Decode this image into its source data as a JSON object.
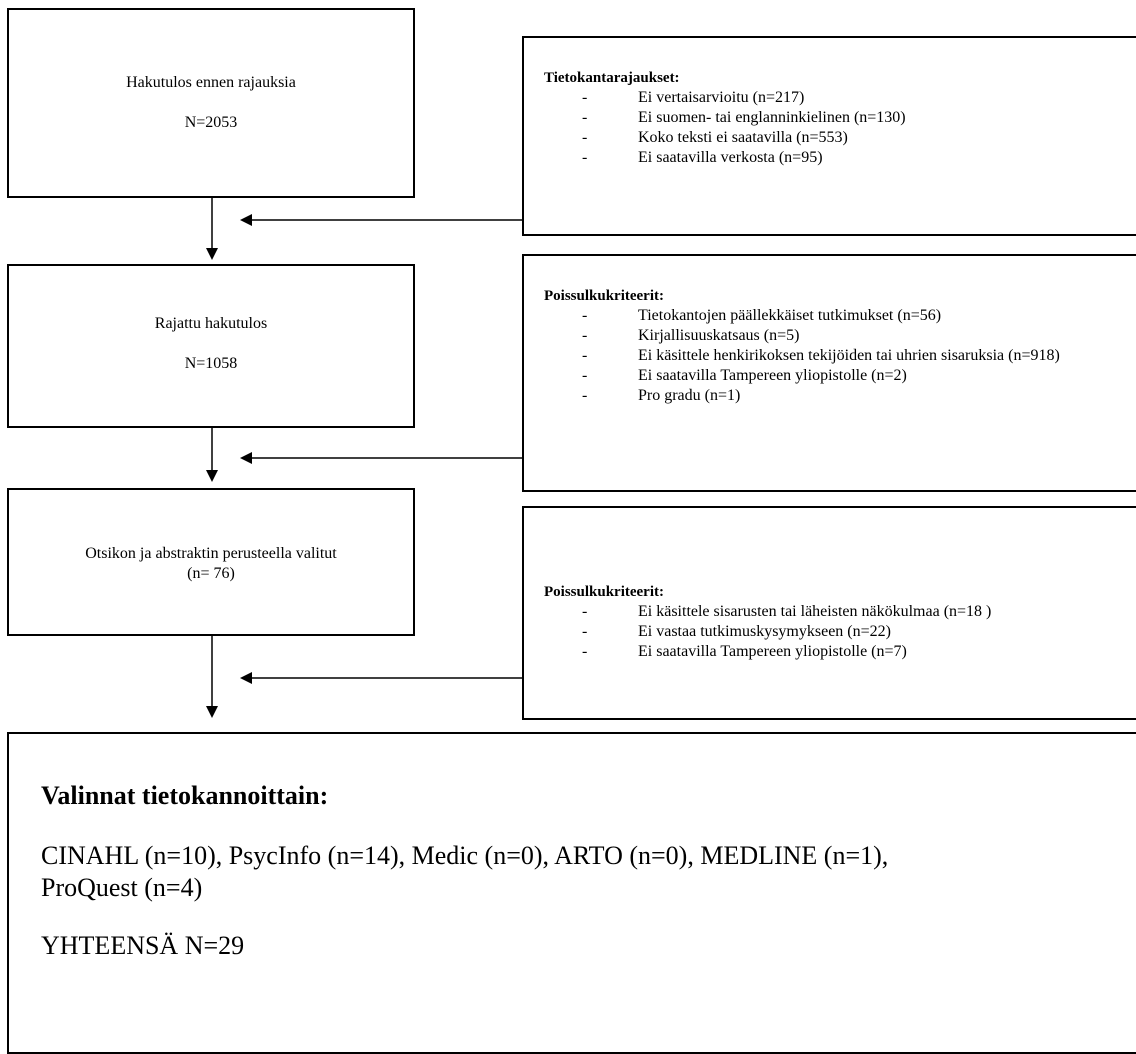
{
  "boxes": {
    "search_result": {
      "title": "Hakutulos ennen rajauksia",
      "count": "N=2053"
    },
    "limited_result": {
      "title": "Rajattu hakutulos",
      "count": "N=1058"
    },
    "selected": {
      "title": "Otsikon ja abstraktin perusteella valitut",
      "count": "(n= 76)"
    }
  },
  "side_boxes": {
    "database_limits": {
      "heading": "Tietokantarajaukset:",
      "items": [
        "Ei vertaisarvioitu (n=217)",
        "Ei suomen- tai englanninkielinen (n=130)",
        "Koko teksti ei saatavilla (n=553)",
        "Ei saatavilla verkosta (n=95)"
      ]
    },
    "exclusion_1": {
      "heading": "Poissulkukriteerit:",
      "items": [
        "Tietokantojen päällekkäiset tutkimukset (n=56)",
        "Kirjallisuuskatsaus (n=5)",
        "Ei käsittele henkirikoksen tekijöiden tai uhrien sisaruksia (n=918)",
        "Ei saatavilla Tampereen yliopistolle (n=2)",
        "Pro gradu (n=1)"
      ]
    },
    "exclusion_2": {
      "heading": "Poissulkukriteerit:",
      "items": [
        "Ei käsittele sisarusten tai läheisten näkökulmaa (n=18 )",
        "Ei vastaa tutkimuskysymykseen (n=22)",
        "Ei saatavilla Tampereen yliopistolle (n=7)"
      ]
    }
  },
  "final": {
    "title": "Valinnat tietokannoittain:",
    "databases": "CINAHL (n=10), PsycInfo (n=14), Medic (n=0), ARTO (n=0), MEDLINE (n=1), ProQuest (n=4)",
    "total": "YHTEENSÄ N=29"
  },
  "bullet": "-"
}
